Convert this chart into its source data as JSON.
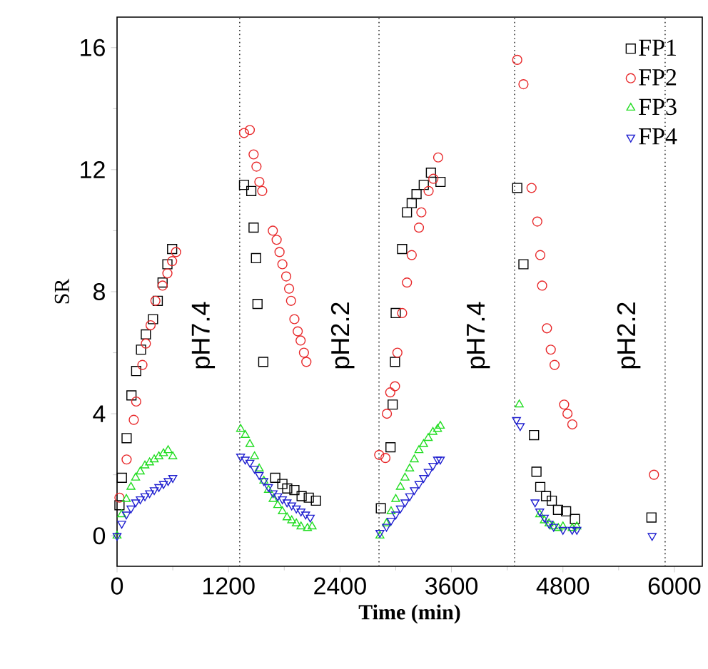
{
  "chart_data": {
    "type": "scatter",
    "xlabel": "Time (min)",
    "ylabel": "SR",
    "xlim": [
      0,
      6300
    ],
    "ylim": [
      -1,
      17
    ],
    "xticks": [
      0,
      1200,
      2400,
      3600,
      4800,
      6000
    ],
    "yticks": [
      0,
      4,
      8,
      12,
      16
    ],
    "legend": "top right",
    "grid": false,
    "ref_lines": [
      {
        "axis": "x",
        "value": 1320,
        "color": "#333333",
        "line_style": "dotted"
      },
      {
        "axis": "x",
        "value": 2820,
        "color": "#333333",
        "line_style": "dotted"
      },
      {
        "axis": "x",
        "value": 4280,
        "color": "#333333",
        "line_style": "dotted"
      },
      {
        "axis": "x",
        "value": 5900,
        "color": "#333333",
        "line_style": "dotted"
      }
    ],
    "annotations": [
      "pH7.4",
      "pH2.2",
      "pH7.4",
      "pH2.2"
    ],
    "series": [
      {
        "name": "FP1",
        "color": "#000000",
        "marker": "square",
        "x": [
          26,
          52,
          103,
          155,
          206,
          258,
          310,
          387,
          438,
          490,
          542,
          593,
          1367,
          1445,
          1470,
          1496,
          1512,
          1574,
          1703,
          1780,
          1832,
          1909,
          1987,
          2064,
          2141,
          2840,
          2944,
          2967,
          2992,
          3000,
          3069,
          3121,
          3172,
          3224,
          3302,
          3379,
          3482,
          4308,
          4375,
          4489,
          4515,
          4556,
          4618,
          4680,
          4747,
          4834,
          4929,
          5753
        ],
        "values": [
          1.0,
          1.9,
          3.2,
          4.6,
          5.4,
          6.1,
          6.6,
          7.1,
          7.7,
          8.3,
          8.9,
          9.4,
          11.5,
          11.3,
          10.1,
          9.1,
          7.6,
          5.7,
          1.9,
          1.7,
          1.55,
          1.5,
          1.3,
          1.25,
          1.15,
          0.9,
          2.9,
          4.3,
          5.7,
          7.3,
          9.4,
          10.6,
          10.9,
          11.2,
          11.5,
          11.9,
          11.6,
          11.4,
          8.9,
          3.3,
          2.1,
          1.6,
          1.3,
          1.15,
          0.85,
          0.8,
          0.55,
          0.6
        ]
      },
      {
        "name": "FP2",
        "color": "#e8282a",
        "marker": "circle",
        "x": [
          26,
          103,
          180,
          206,
          273,
          310,
          361,
          413,
          490,
          542,
          593,
          635,
          1367,
          1429,
          1470,
          1501,
          1532,
          1563,
          1677,
          1718,
          1749,
          1780,
          1821,
          1852,
          1873,
          1909,
          1945,
          1976,
          2012,
          2038,
          2822,
          2889,
          2905,
          2941,
          2992,
          3018,
          3069,
          3121,
          3172,
          3250,
          3276,
          3354,
          3405,
          3457,
          4308,
          4375,
          4462,
          4524,
          4556,
          4576,
          4628,
          4669,
          4710,
          4813,
          4849,
          4901,
          5780
        ],
        "values": [
          1.25,
          2.5,
          3.8,
          4.4,
          5.6,
          6.3,
          6.9,
          7.7,
          8.2,
          8.6,
          9.0,
          9.3,
          13.2,
          13.3,
          12.5,
          12.1,
          11.6,
          11.3,
          10.0,
          9.7,
          9.3,
          8.9,
          8.5,
          8.1,
          7.7,
          7.1,
          6.7,
          6.4,
          6.0,
          5.7,
          2.65,
          2.55,
          4.0,
          4.7,
          4.9,
          6.0,
          7.3,
          8.3,
          9.2,
          10.1,
          10.6,
          11.3,
          11.7,
          12.4,
          15.6,
          14.8,
          11.4,
          10.3,
          9.2,
          8.2,
          6.8,
          6.1,
          5.6,
          4.3,
          4.0,
          3.65,
          2.0
        ]
      },
      {
        "name": "FP3",
        "color": "#22dd22",
        "marker": "triangle",
        "x": [
          0,
          50,
          100,
          150,
          200,
          250,
          300,
          350,
          400,
          450,
          500,
          550,
          600,
          1330,
          1380,
          1430,
          1480,
          1530,
          1580,
          1630,
          1680,
          1730,
          1780,
          1830,
          1880,
          1930,
          1980,
          2050,
          2100,
          2830,
          2900,
          2950,
          3000,
          3050,
          3100,
          3150,
          3200,
          3250,
          3300,
          3350,
          3400,
          3450,
          3480,
          4330,
          4550,
          4600,
          4650,
          4700,
          4750,
          4800,
          4900,
          4950
        ],
        "values": [
          0,
          0.7,
          1.2,
          1.6,
          1.9,
          2.1,
          2.3,
          2.4,
          2.5,
          2.6,
          2.7,
          2.8,
          2.6,
          3.5,
          3.3,
          3.0,
          2.6,
          2.2,
          1.8,
          1.5,
          1.2,
          1.0,
          0.8,
          0.6,
          0.5,
          0.4,
          0.3,
          0.25,
          0.3,
          0,
          0.4,
          0.8,
          1.2,
          1.6,
          1.9,
          2.2,
          2.5,
          2.8,
          3.0,
          3.2,
          3.4,
          3.5,
          3.6,
          4.3,
          0.7,
          0.5,
          0.4,
          0.3,
          0.25,
          0.3,
          0.25,
          0.3
        ]
      },
      {
        "name": "FP4",
        "color": "#2020d0",
        "marker": "triangle-down",
        "x": [
          0,
          50,
          100,
          150,
          200,
          250,
          300,
          350,
          400,
          450,
          500,
          550,
          600,
          1330,
          1380,
          1430,
          1480,
          1530,
          1580,
          1630,
          1680,
          1730,
          1780,
          1830,
          1880,
          1930,
          1980,
          2030,
          2080,
          2830,
          2900,
          2950,
          3000,
          3050,
          3100,
          3150,
          3200,
          3250,
          3300,
          3350,
          3400,
          3450,
          3480,
          4300,
          4340,
          4500,
          4550,
          4600,
          4650,
          4700,
          4800,
          4900,
          4950,
          5760
        ],
        "values": [
          0,
          0.4,
          0.7,
          0.9,
          1.1,
          1.2,
          1.3,
          1.4,
          1.5,
          1.6,
          1.7,
          1.8,
          1.9,
          2.6,
          2.5,
          2.4,
          2.2,
          2.0,
          1.8,
          1.6,
          1.4,
          1.3,
          1.2,
          1.1,
          1.0,
          0.9,
          0.8,
          0.7,
          0.6,
          0.1,
          0.3,
          0.5,
          0.7,
          0.9,
          1.1,
          1.3,
          1.5,
          1.7,
          1.9,
          2.1,
          2.3,
          2.5,
          2.5,
          3.8,
          3.6,
          1.1,
          0.8,
          0.6,
          0.4,
          0.3,
          0.2,
          0.2,
          0.2,
          0.0
        ]
      }
    ]
  }
}
